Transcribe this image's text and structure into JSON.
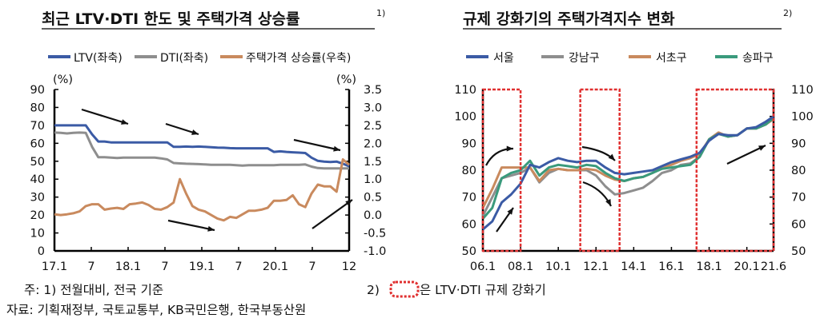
{
  "chart_data": [
    {
      "type": "line",
      "title": "최근 LTV·DTI 한도 및 주택가격 상승률",
      "title_sup": "1)",
      "ylabel_left": "(%)",
      "ylabel_right": "(%)",
      "ylim_left": [
        0,
        90
      ],
      "ylim_right": [
        -1.0,
        3.5
      ],
      "yticks_left": [
        "90",
        "80",
        "70",
        "60",
        "50",
        "40",
        "30",
        "20",
        "10",
        "0"
      ],
      "yticks_right": [
        "3.5",
        "3.0",
        "2.5",
        "2.0",
        "1.5",
        "1.0",
        "0.5",
        "0.0",
        "-0.5",
        "-1.0"
      ],
      "xtick_labels": [
        "17.1",
        "7",
        "18.1",
        "7",
        "19.1",
        "7",
        "20.1",
        "7",
        "12"
      ],
      "x_start": "2017.1",
      "x_end": "2020.12",
      "legend_placement": "top",
      "grid": false,
      "series": [
        {
          "name": "LTV(좌축)",
          "axis": "left",
          "color": "#3b5ba5",
          "values": [
            70,
            70,
            70,
            70,
            70,
            70,
            65,
            61,
            61,
            60.5,
            60.5,
            60.5,
            60.5,
            60.5,
            60.5,
            60.5,
            60.5,
            60.5,
            60.5,
            58,
            58,
            58.2,
            58,
            58.2,
            58,
            57.8,
            57.6,
            57.5,
            57.3,
            57.2,
            57.2,
            57.2,
            57.2,
            57.2,
            57.2,
            55.2,
            55.5,
            55.2,
            55,
            54.8,
            54.6,
            52,
            50.2,
            49.8,
            49.6,
            49.8,
            48.6,
            47.2
          ]
        },
        {
          "name": "DTI(좌축)",
          "axis": "left",
          "color": "#8e8e8e",
          "values": [
            66,
            65.8,
            65.5,
            65.8,
            66,
            65.8,
            58,
            52.2,
            52.2,
            52,
            51.8,
            52,
            52,
            52,
            52,
            52,
            52,
            51.6,
            51,
            49,
            48.8,
            48.6,
            48.5,
            48.4,
            48.2,
            48,
            48,
            48,
            48,
            47.8,
            47.6,
            47.8,
            47.8,
            47.8,
            47.8,
            47.8,
            48,
            48,
            48,
            48,
            48.2,
            47,
            46.2,
            46,
            46,
            46,
            46,
            46
          ]
        },
        {
          "name": "주택가격 상승률(우축)",
          "axis": "right",
          "color": "#c98a5e",
          "values": [
            0.02,
            0.0,
            0.02,
            0.05,
            0.1,
            0.25,
            0.3,
            0.3,
            0.15,
            0.18,
            0.2,
            0.17,
            0.3,
            0.32,
            0.35,
            0.28,
            0.17,
            0.15,
            0.22,
            0.35,
            1.0,
            0.6,
            0.25,
            0.15,
            0.1,
            0.0,
            -0.1,
            -0.15,
            -0.05,
            -0.08,
            0.02,
            0.12,
            0.12,
            0.15,
            0.2,
            0.4,
            0.4,
            0.42,
            0.55,
            0.3,
            0.22,
            0.6,
            0.85,
            0.8,
            0.8,
            0.65,
            1.55,
            1.4
          ]
        }
      ]
    },
    {
      "type": "line",
      "title": "규제 강화기의 주택가격지수 변화",
      "title_sup": "2)",
      "ylim_left": [
        50,
        110
      ],
      "ylim_right": [
        50,
        110
      ],
      "yticks": [
        "110",
        "100",
        "90",
        "80",
        "70",
        "60",
        "50"
      ],
      "xtick_labels": [
        "06.1",
        "08.1",
        "10.1",
        "12.1",
        "14.1",
        "16.1",
        "18.1",
        "20.1",
        "21.6"
      ],
      "x_points": [
        "06.1",
        "06.7",
        "07.1",
        "07.7",
        "08.1",
        "08.7",
        "09.1",
        "09.7",
        "10.1",
        "10.7",
        "11.1",
        "11.7",
        "12.1",
        "12.7",
        "13.1",
        "13.7",
        "14.1",
        "14.7",
        "15.1",
        "15.7",
        "16.1",
        "16.7",
        "17.1",
        "17.7",
        "18.1",
        "18.7",
        "19.1",
        "19.7",
        "20.1",
        "20.7",
        "21.1",
        "21.6"
      ],
      "legend_placement": "top",
      "grid": false,
      "regulation_periods": [
        [
          "06.1",
          "08.1"
        ],
        [
          "11.3",
          "13.4"
        ],
        [
          "17.5",
          "21.6"
        ]
      ],
      "series": [
        {
          "name": "서울",
          "color": "#3b5ba5",
          "values": [
            58,
            61,
            68,
            71,
            75,
            82,
            81,
            83,
            84.5,
            83.5,
            83,
            83.5,
            83.5,
            81,
            79,
            78.5,
            79,
            79.5,
            80,
            81.5,
            83,
            84,
            85,
            86.5,
            91,
            93.5,
            93,
            93,
            95.5,
            96,
            98,
            100
          ]
        },
        {
          "name": "강남구",
          "color": "#8e8e8e",
          "values": [
            63,
            70,
            77,
            78,
            79,
            81,
            75.5,
            79,
            80.5,
            80,
            80,
            80,
            78,
            74,
            71,
            71.5,
            72.5,
            73.5,
            76,
            79,
            80,
            82,
            82.5,
            85,
            91.5,
            94,
            92.5,
            93,
            95.5,
            95.5,
            97,
            99.5
          ]
        },
        {
          "name": "서초구",
          "color": "#c98a5e",
          "values": [
            66,
            73,
            81,
            81,
            81,
            81,
            76,
            80,
            80.5,
            80,
            80,
            80.5,
            80,
            78,
            76.5,
            76,
            77,
            77.5,
            79,
            81,
            82,
            83.5,
            84.5,
            86,
            91.5,
            94,
            92.5,
            93,
            95.5,
            95.5,
            97,
            99
          ]
        },
        {
          "name": "송파구",
          "color": "#3a9a7c",
          "values": [
            62,
            66,
            77,
            79,
            80,
            83.5,
            78,
            81,
            82,
            81.5,
            81,
            82,
            81.5,
            79,
            77,
            76,
            77,
            77.5,
            79,
            80.5,
            81,
            81.5,
            82,
            85,
            91.5,
            93.5,
            92.5,
            93,
            95.5,
            95.5,
            97,
            99.5
          ]
        }
      ]
    }
  ],
  "footer": {
    "note_label": "주: 1) 전월대비, 전국 기준",
    "note2_prefix": "2)",
    "note2_text": "은 LTV·DTI 규제 강화기",
    "source": "자료: 기획재정부, 국토교통부, KB국민은행, 한국부동산원"
  },
  "colors": {
    "regulation_box": "#e03030",
    "axis": "#000000"
  }
}
